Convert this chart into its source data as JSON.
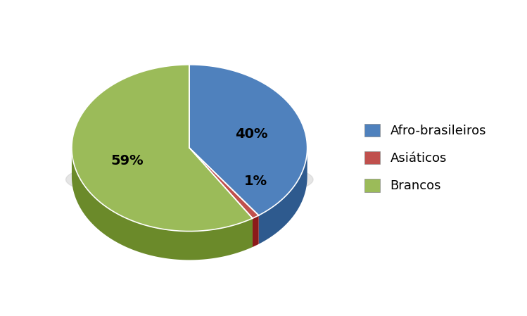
{
  "labels": [
    "Afro-brasileiros",
    "Asiáticos",
    "Brancos"
  ],
  "values": [
    40,
    1,
    59
  ],
  "colors": [
    "#4F81BD",
    "#C0504D",
    "#9BBB59"
  ],
  "dark_colors": [
    "#2E5A8E",
    "#8B1A1A",
    "#6B8A2A"
  ],
  "pct_labels": [
    "40%",
    "1%",
    "59%"
  ],
  "legend_labels": [
    "Afro-brasileiros",
    "Asiáticos",
    "Brancos"
  ],
  "background_color": "#ffffff",
  "label_fontsize": 14,
  "legend_fontsize": 13,
  "figure_width": 7.49,
  "figure_height": 4.49,
  "dpi": 100
}
